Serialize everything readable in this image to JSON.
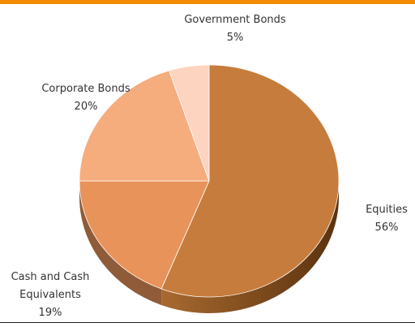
{
  "chart_data": {
    "type": "pie",
    "title": "",
    "categories": [
      "Equities",
      "Cash and Cash Equivalents",
      "Corporate Bonds",
      "Government Bonds"
    ],
    "values": [
      56,
      19,
      20,
      5
    ],
    "value_labels": [
      "56%",
      "19%",
      "20%",
      "5%"
    ],
    "label_lines": [
      [
        "Equities"
      ],
      [
        "Cash and Cash",
        "Equivalents"
      ],
      [
        "Corporate Bonds"
      ],
      [
        "Government Bonds"
      ]
    ],
    "colors": [
      "#c67c3c",
      "#e8935a",
      "#f5ad7e",
      "#fdd4bf"
    ],
    "legend": "none",
    "style": "3d"
  }
}
